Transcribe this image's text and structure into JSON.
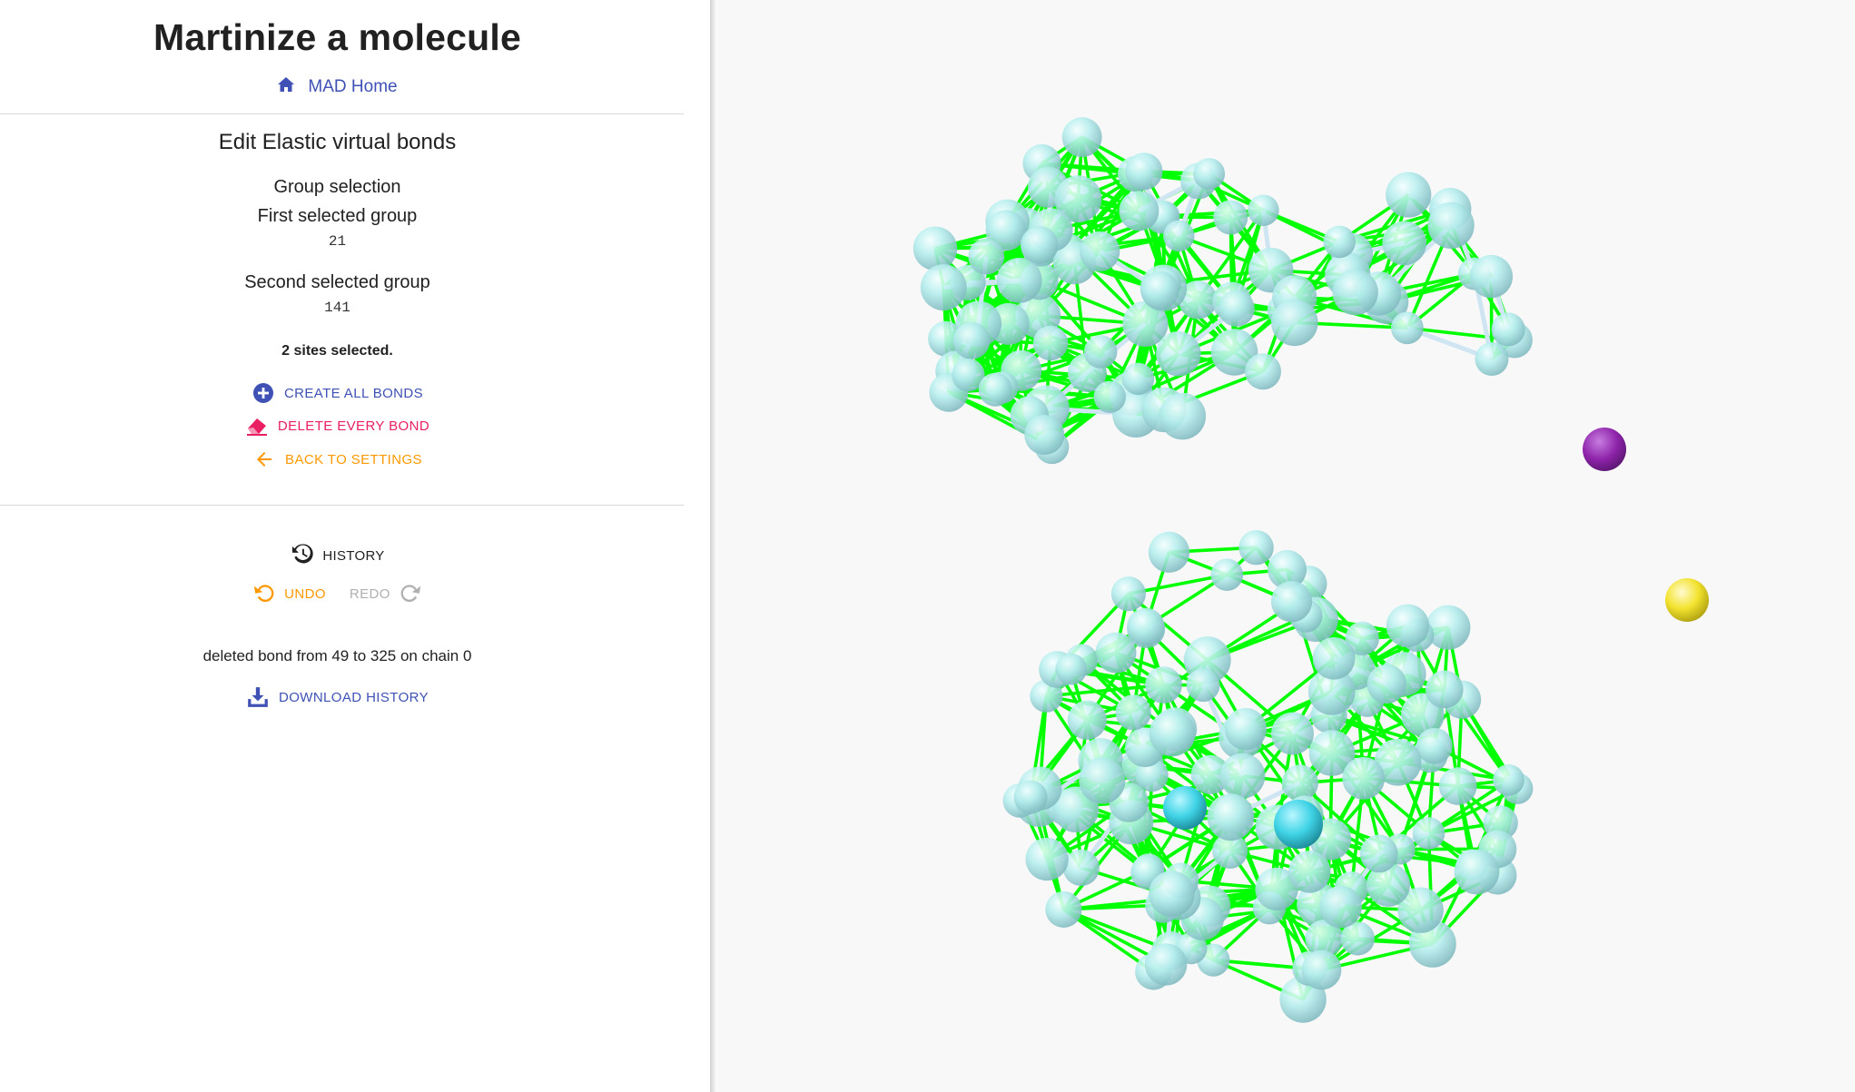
{
  "header": {
    "title": "Martinize a molecule",
    "home_link": "MAD Home"
  },
  "editor": {
    "section_title": "Edit Elastic virtual bonds",
    "group_selection_label": "Group selection",
    "first_group_label": "First selected group",
    "first_group_value": "21",
    "second_group_label": "Second selected group",
    "second_group_value": "141",
    "sites_selected": "2 sites selected.",
    "actions": {
      "create_all": "CREATE ALL BONDS",
      "delete_every": "DELETE EVERY BOND",
      "back": "BACK TO SETTINGS"
    }
  },
  "history": {
    "label": "HISTORY",
    "undo": "UNDO",
    "redo": "REDO",
    "last_entry": "deleted bond from 49 to 325 on chain 0",
    "download": "DOWNLOAD HISTORY"
  },
  "icons": {
    "home": "home-icon",
    "create": "plus-circle-icon",
    "delete": "eraser-icon",
    "back": "arrow-left-icon",
    "history": "history-icon",
    "undo": "undo-icon",
    "redo": "redo-icon",
    "download": "download-icon"
  },
  "colors": {
    "primary": "#3f51b5",
    "danger": "#e91e63",
    "warning": "#ff9800",
    "disabled": "#b0b0b0",
    "bond": "#00ff00",
    "bead": "#b2f0f0",
    "selected_a": "#8e24aa",
    "selected_b": "#ffeb3b",
    "selected_c": "#26c6da"
  }
}
